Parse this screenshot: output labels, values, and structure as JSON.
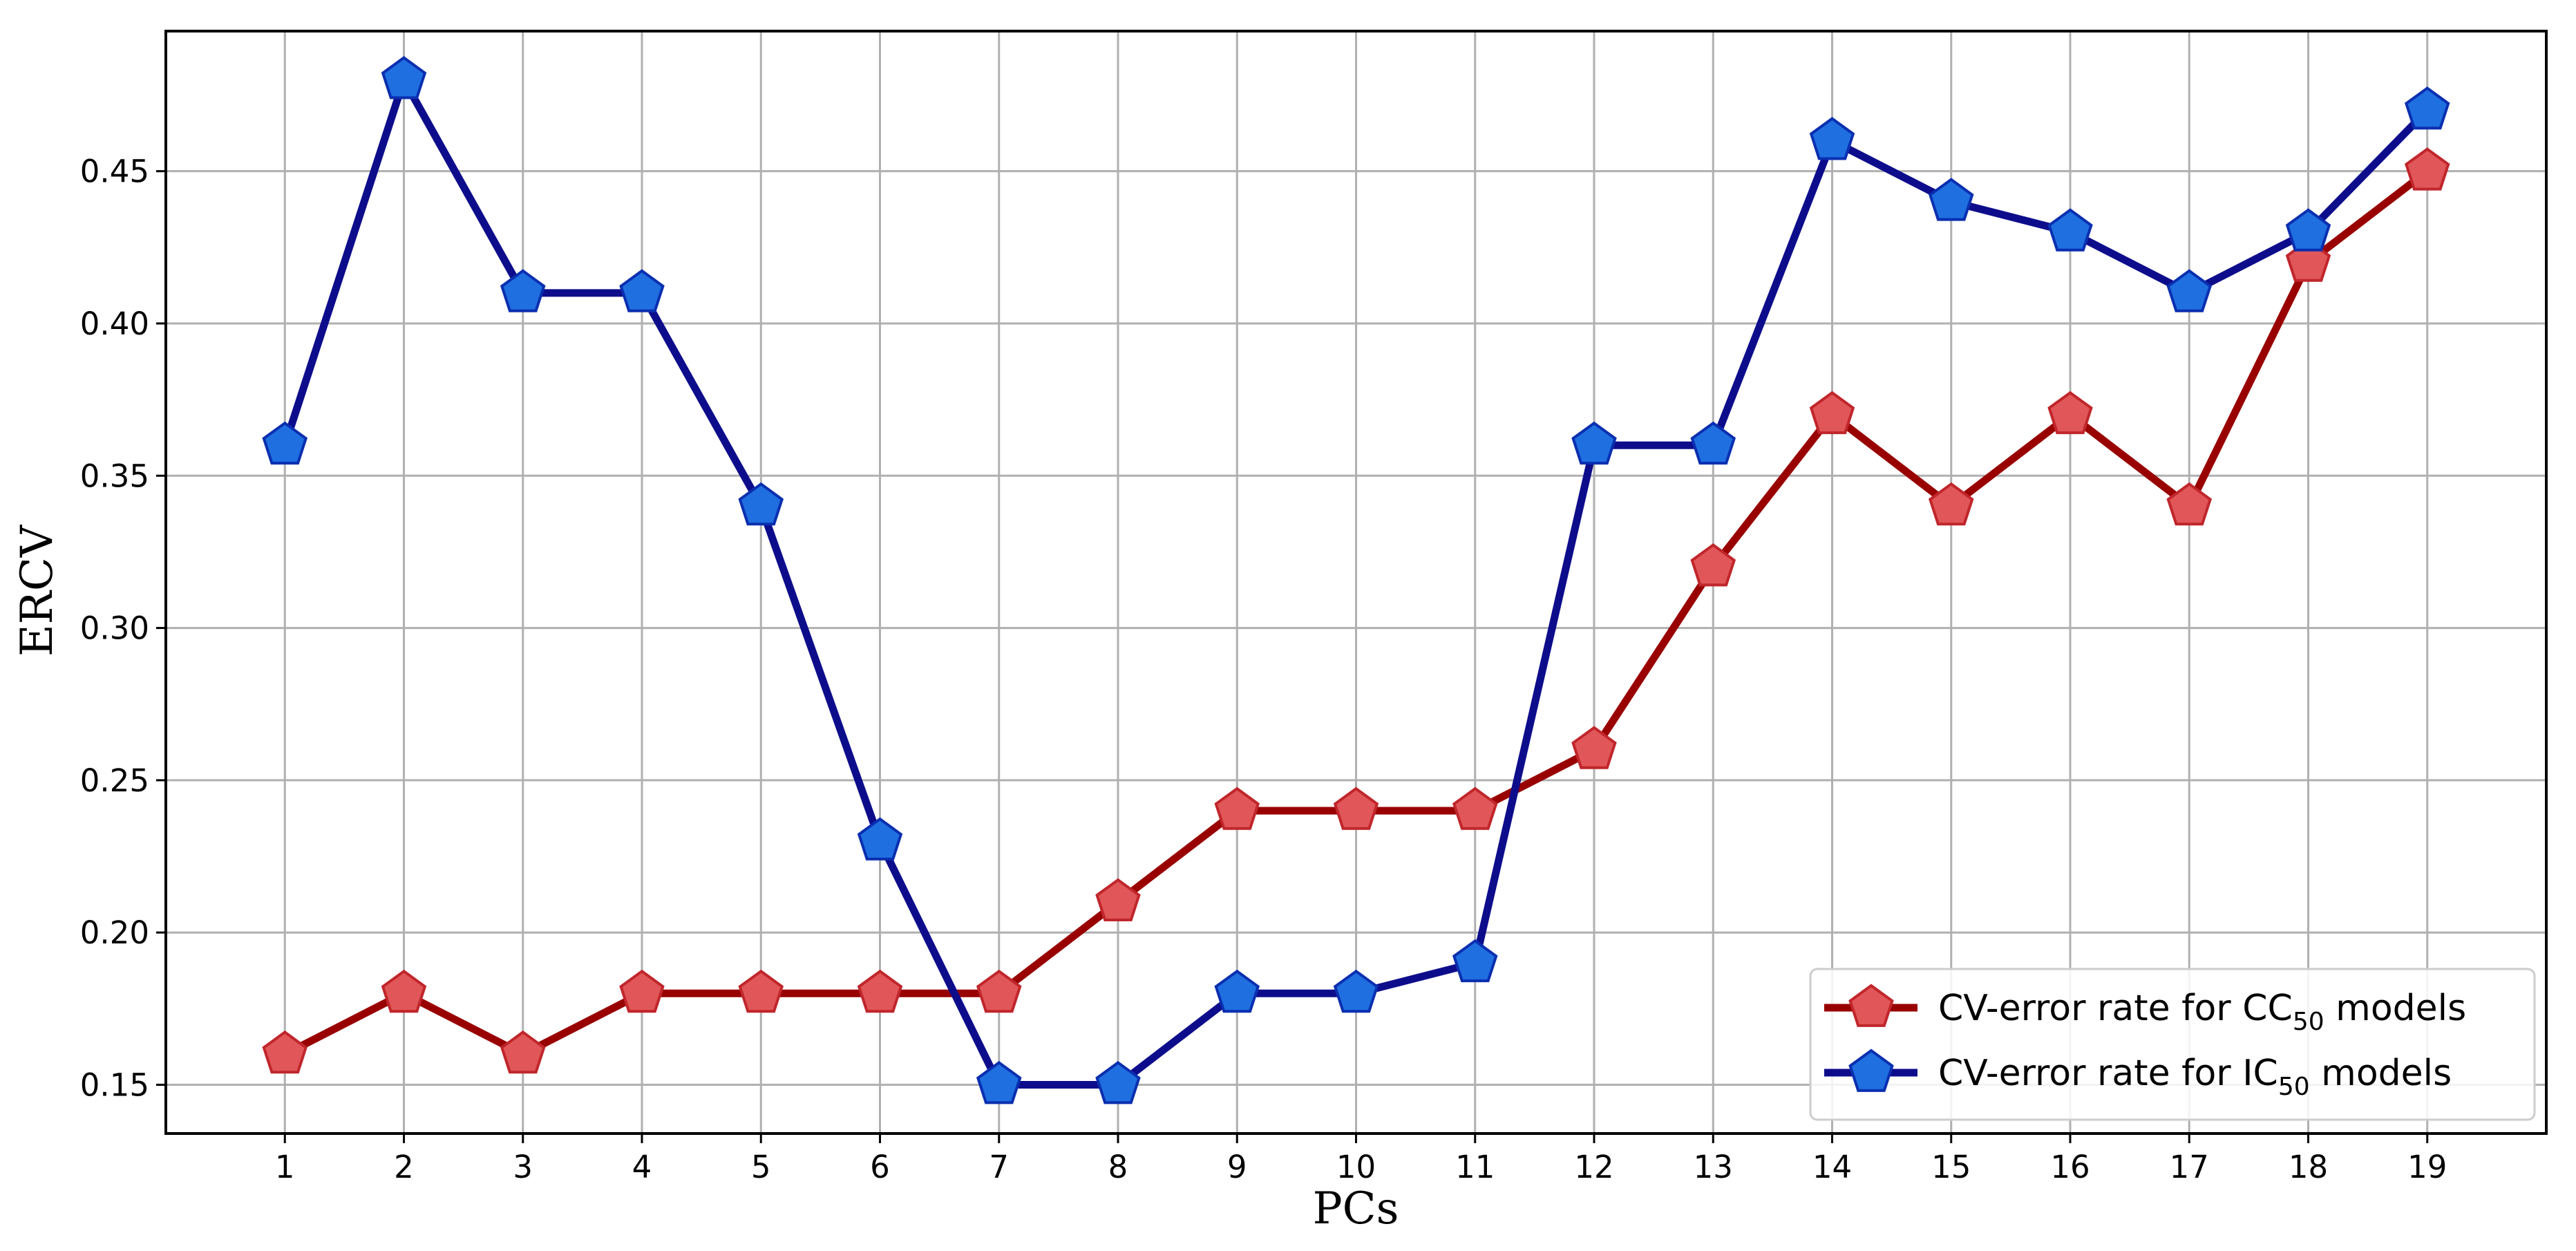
{
  "chart_data": {
    "type": "line",
    "xlabel": "PCs",
    "ylabel": "ERCV",
    "x": [
      1,
      2,
      3,
      4,
      5,
      6,
      7,
      8,
      9,
      10,
      11,
      12,
      13,
      14,
      15,
      16,
      17,
      18,
      19
    ],
    "xlim": [
      0,
      20
    ],
    "ylim": [
      0.134,
      0.496
    ],
    "y_ticks": [
      "0.15",
      "0.20",
      "0.25",
      "0.30",
      "0.35",
      "0.40",
      "0.45"
    ],
    "grid": true,
    "legend_position": "bottom-right",
    "marker": "pentagon",
    "series": [
      {
        "name": "CV-error rate for CC",
        "name_subscript": "50",
        "name_suffix": " models",
        "line_color": "#990000",
        "marker_fill": "#e15759",
        "marker_edge": "#c0262b",
        "values": [
          0.16,
          0.18,
          0.16,
          0.18,
          0.18,
          0.18,
          0.18,
          0.21,
          0.24,
          0.24,
          0.24,
          0.26,
          0.32,
          0.37,
          0.34,
          0.37,
          0.34,
          0.42,
          0.45
        ]
      },
      {
        "name": "CV-error rate for IC",
        "name_subscript": "50",
        "name_suffix": " models",
        "line_color": "#0d0d8c",
        "marker_fill": "#1f6fe0",
        "marker_edge": "#0a2fb0",
        "values": [
          0.36,
          0.48,
          0.41,
          0.41,
          0.34,
          0.23,
          0.15,
          0.15,
          0.18,
          0.18,
          0.19,
          0.36,
          0.36,
          0.46,
          0.44,
          0.43,
          0.41,
          0.43,
          0.47
        ]
      }
    ]
  }
}
